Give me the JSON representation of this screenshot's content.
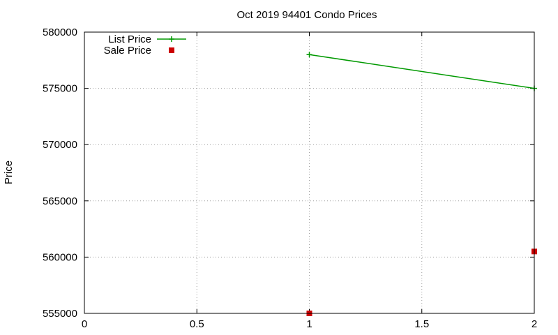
{
  "chart_data": {
    "type": "line",
    "title": "Oct 2019 94401 Condo Prices",
    "xlabel": "",
    "ylabel": "Price",
    "xlim": [
      0,
      2
    ],
    "ylim": [
      555000,
      580000
    ],
    "xticks": [
      0,
      0.5,
      1,
      1.5,
      2
    ],
    "yticks": [
      555000,
      560000,
      565000,
      570000,
      575000,
      580000
    ],
    "xtick_labels": [
      "0",
      "0.5",
      "1",
      "1.5",
      "2"
    ],
    "ytick_labels": [
      "555000",
      "560000",
      "565000",
      "570000",
      "575000",
      "580000"
    ],
    "grid": true,
    "legend_position": "top-left",
    "series": [
      {
        "name": "List Price",
        "style": "lines+points",
        "marker": "plus",
        "color": "#009900",
        "x": [
          1,
          2
        ],
        "y": [
          578000,
          575000
        ]
      },
      {
        "name": "Sale Price",
        "style": "points",
        "marker": "square",
        "color": "#cc0000",
        "x": [
          1,
          2
        ],
        "y": [
          555000,
          560500
        ]
      }
    ]
  }
}
